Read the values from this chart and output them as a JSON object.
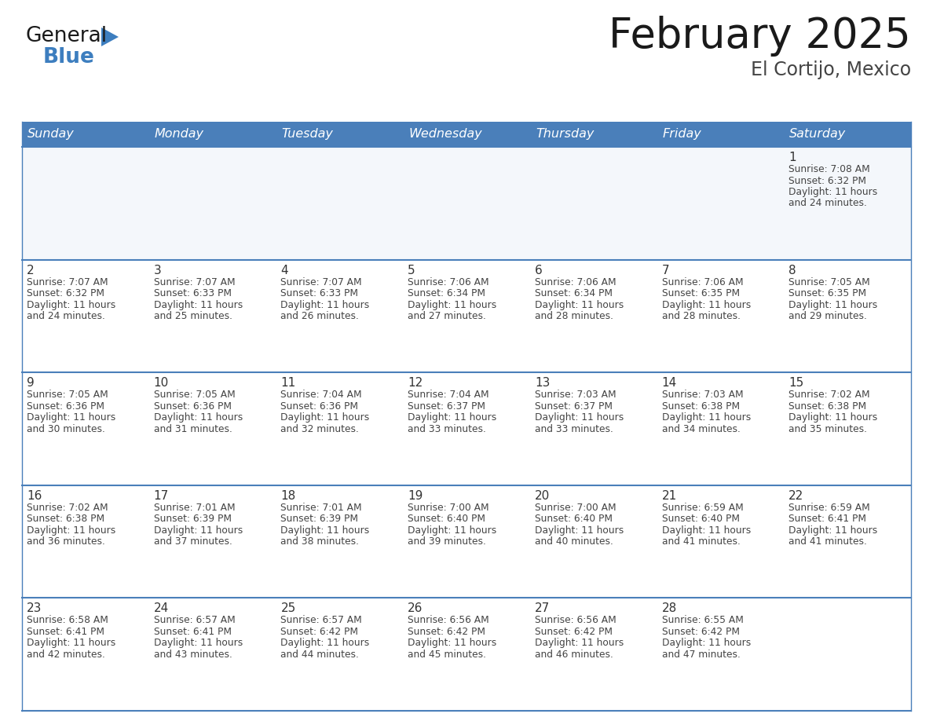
{
  "title": "February 2025",
  "subtitle": "El Cortijo, Mexico",
  "header_bg_color": "#4a7fba",
  "header_text_color": "#ffffff",
  "cell_bg_even": "#f0f4f8",
  "cell_bg_odd": "#ffffff",
  "cell_border_color": "#4a7fba",
  "day_number_color": "#333333",
  "cell_text_color": "#444444",
  "days_of_week": [
    "Sunday",
    "Monday",
    "Tuesday",
    "Wednesday",
    "Thursday",
    "Friday",
    "Saturday"
  ],
  "weeks": [
    [
      null,
      null,
      null,
      null,
      null,
      null,
      1
    ],
    [
      2,
      3,
      4,
      5,
      6,
      7,
      8
    ],
    [
      9,
      10,
      11,
      12,
      13,
      14,
      15
    ],
    [
      16,
      17,
      18,
      19,
      20,
      21,
      22
    ],
    [
      23,
      24,
      25,
      26,
      27,
      28,
      null
    ]
  ],
  "cell_data": {
    "1": {
      "sunrise": "7:08 AM",
      "sunset": "6:32 PM",
      "daylight_hours": 11,
      "daylight_minutes": 24
    },
    "2": {
      "sunrise": "7:07 AM",
      "sunset": "6:32 PM",
      "daylight_hours": 11,
      "daylight_minutes": 24
    },
    "3": {
      "sunrise": "7:07 AM",
      "sunset": "6:33 PM",
      "daylight_hours": 11,
      "daylight_minutes": 25
    },
    "4": {
      "sunrise": "7:07 AM",
      "sunset": "6:33 PM",
      "daylight_hours": 11,
      "daylight_minutes": 26
    },
    "5": {
      "sunrise": "7:06 AM",
      "sunset": "6:34 PM",
      "daylight_hours": 11,
      "daylight_minutes": 27
    },
    "6": {
      "sunrise": "7:06 AM",
      "sunset": "6:34 PM",
      "daylight_hours": 11,
      "daylight_minutes": 28
    },
    "7": {
      "sunrise": "7:06 AM",
      "sunset": "6:35 PM",
      "daylight_hours": 11,
      "daylight_minutes": 28
    },
    "8": {
      "sunrise": "7:05 AM",
      "sunset": "6:35 PM",
      "daylight_hours": 11,
      "daylight_minutes": 29
    },
    "9": {
      "sunrise": "7:05 AM",
      "sunset": "6:36 PM",
      "daylight_hours": 11,
      "daylight_minutes": 30
    },
    "10": {
      "sunrise": "7:05 AM",
      "sunset": "6:36 PM",
      "daylight_hours": 11,
      "daylight_minutes": 31
    },
    "11": {
      "sunrise": "7:04 AM",
      "sunset": "6:36 PM",
      "daylight_hours": 11,
      "daylight_minutes": 32
    },
    "12": {
      "sunrise": "7:04 AM",
      "sunset": "6:37 PM",
      "daylight_hours": 11,
      "daylight_minutes": 33
    },
    "13": {
      "sunrise": "7:03 AM",
      "sunset": "6:37 PM",
      "daylight_hours": 11,
      "daylight_minutes": 33
    },
    "14": {
      "sunrise": "7:03 AM",
      "sunset": "6:38 PM",
      "daylight_hours": 11,
      "daylight_minutes": 34
    },
    "15": {
      "sunrise": "7:02 AM",
      "sunset": "6:38 PM",
      "daylight_hours": 11,
      "daylight_minutes": 35
    },
    "16": {
      "sunrise": "7:02 AM",
      "sunset": "6:38 PM",
      "daylight_hours": 11,
      "daylight_minutes": 36
    },
    "17": {
      "sunrise": "7:01 AM",
      "sunset": "6:39 PM",
      "daylight_hours": 11,
      "daylight_minutes": 37
    },
    "18": {
      "sunrise": "7:01 AM",
      "sunset": "6:39 PM",
      "daylight_hours": 11,
      "daylight_minutes": 38
    },
    "19": {
      "sunrise": "7:00 AM",
      "sunset": "6:40 PM",
      "daylight_hours": 11,
      "daylight_minutes": 39
    },
    "20": {
      "sunrise": "7:00 AM",
      "sunset": "6:40 PM",
      "daylight_hours": 11,
      "daylight_minutes": 40
    },
    "21": {
      "sunrise": "6:59 AM",
      "sunset": "6:40 PM",
      "daylight_hours": 11,
      "daylight_minutes": 41
    },
    "22": {
      "sunrise": "6:59 AM",
      "sunset": "6:41 PM",
      "daylight_hours": 11,
      "daylight_minutes": 41
    },
    "23": {
      "sunrise": "6:58 AM",
      "sunset": "6:41 PM",
      "daylight_hours": 11,
      "daylight_minutes": 42
    },
    "24": {
      "sunrise": "6:57 AM",
      "sunset": "6:41 PM",
      "daylight_hours": 11,
      "daylight_minutes": 43
    },
    "25": {
      "sunrise": "6:57 AM",
      "sunset": "6:42 PM",
      "daylight_hours": 11,
      "daylight_minutes": 44
    },
    "26": {
      "sunrise": "6:56 AM",
      "sunset": "6:42 PM",
      "daylight_hours": 11,
      "daylight_minutes": 45
    },
    "27": {
      "sunrise": "6:56 AM",
      "sunset": "6:42 PM",
      "daylight_hours": 11,
      "daylight_minutes": 46
    },
    "28": {
      "sunrise": "6:55 AM",
      "sunset": "6:42 PM",
      "daylight_hours": 11,
      "daylight_minutes": 47
    }
  },
  "logo_text_general": "General",
  "logo_text_blue": "Blue",
  "logo_triangle_color": "#3d7ebf",
  "title_fontsize": 38,
  "subtitle_fontsize": 17,
  "header_fontsize": 11.5,
  "day_num_fontsize": 11,
  "cell_text_fontsize": 8.8
}
